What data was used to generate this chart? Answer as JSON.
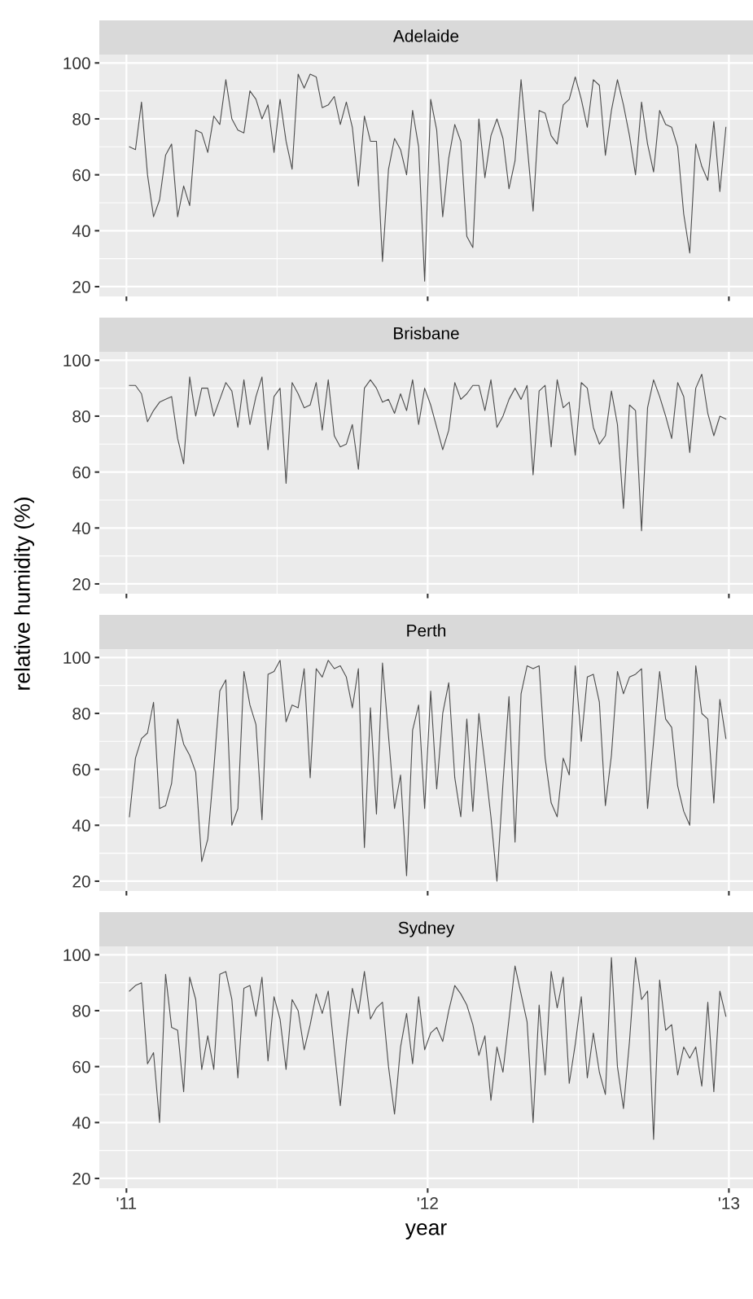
{
  "chart_data": [
    {
      "type": "line",
      "title": "Adelaide",
      "xlim": [
        2010.91,
        2013.08
      ],
      "ylim": [
        16.5,
        103
      ],
      "xticks": [
        2011,
        2012,
        2013
      ],
      "yticks": [
        20,
        40,
        60,
        80,
        100
      ],
      "grid": true,
      "tick_labels": "y",
      "x": [
        2011.01,
        2011.03,
        2011.05,
        2011.07,
        2011.09,
        2011.11,
        2011.13,
        2011.15,
        2011.17,
        2011.19,
        2011.21,
        2011.23,
        2011.25,
        2011.27,
        2011.29,
        2011.31,
        2011.33,
        2011.35,
        2011.37,
        2011.39,
        2011.41,
        2011.43,
        2011.45,
        2011.47,
        2011.49,
        2011.51,
        2011.53,
        2011.55,
        2011.57,
        2011.59,
        2011.61,
        2011.63,
        2011.65,
        2011.67,
        2011.69,
        2011.71,
        2011.73,
        2011.75,
        2011.77,
        2011.79,
        2011.81,
        2011.83,
        2011.85,
        2011.87,
        2011.89,
        2011.91,
        2011.93,
        2011.95,
        2011.97,
        2011.99,
        2012.01,
        2012.03,
        2012.05,
        2012.07,
        2012.09,
        2012.11,
        2012.13,
        2012.15,
        2012.17,
        2012.19,
        2012.21,
        2012.23,
        2012.25,
        2012.27,
        2012.29,
        2012.31,
        2012.33,
        2012.35,
        2012.37,
        2012.39,
        2012.41,
        2012.43,
        2012.45,
        2012.47,
        2012.49,
        2012.51,
        2012.53,
        2012.55,
        2012.57,
        2012.59,
        2012.61,
        2012.63,
        2012.65,
        2012.67,
        2012.69,
        2012.71,
        2012.73,
        2012.75,
        2012.77,
        2012.79,
        2012.81,
        2012.83,
        2012.85,
        2012.87,
        2012.89,
        2012.91,
        2012.93,
        2012.95,
        2012.97,
        2012.99
      ],
      "series": [
        {
          "color": "#4d4d4d",
          "values": [
            70,
            69,
            86,
            60,
            45,
            51,
            67,
            71,
            45,
            56,
            49,
            76,
            75,
            68,
            81,
            78,
            94,
            80,
            76,
            75,
            90,
            87,
            80,
            85,
            68,
            87,
            72,
            62,
            96,
            91,
            96,
            95,
            84,
            85,
            88,
            78,
            86,
            77,
            56,
            81,
            72,
            72,
            29,
            62,
            73,
            69,
            60,
            83,
            70,
            22,
            87,
            76,
            45,
            66,
            78,
            72,
            38,
            34,
            80,
            59,
            74,
            80,
            73,
            55,
            65,
            94,
            71,
            47,
            83,
            82,
            74,
            71,
            85,
            87,
            95,
            87,
            77,
            94,
            92,
            67,
            83,
            94,
            85,
            74,
            60,
            86,
            71,
            61,
            83,
            78,
            77,
            70,
            46,
            32,
            71,
            63,
            58,
            79,
            54,
            77
          ]
        }
      ]
    },
    {
      "type": "line",
      "title": "Brisbane",
      "ylabel": "relative humidity (%)",
      "xlim": [
        2010.91,
        2013.08
      ],
      "ylim": [
        16.5,
        103
      ],
      "xticks": [
        2011,
        2012,
        2013
      ],
      "yticks": [
        20,
        40,
        60,
        80,
        100
      ],
      "grid": true,
      "tick_labels": "y",
      "x": [
        2011.01,
        2011.03,
        2011.05,
        2011.07,
        2011.09,
        2011.11,
        2011.13,
        2011.15,
        2011.17,
        2011.19,
        2011.21,
        2011.23,
        2011.25,
        2011.27,
        2011.29,
        2011.31,
        2011.33,
        2011.35,
        2011.37,
        2011.39,
        2011.41,
        2011.43,
        2011.45,
        2011.47,
        2011.49,
        2011.51,
        2011.53,
        2011.55,
        2011.57,
        2011.59,
        2011.61,
        2011.63,
        2011.65,
        2011.67,
        2011.69,
        2011.71,
        2011.73,
        2011.75,
        2011.77,
        2011.79,
        2011.81,
        2011.83,
        2011.85,
        2011.87,
        2011.89,
        2011.91,
        2011.93,
        2011.95,
        2011.97,
        2011.99,
        2012.01,
        2012.03,
        2012.05,
        2012.07,
        2012.09,
        2012.11,
        2012.13,
        2012.15,
        2012.17,
        2012.19,
        2012.21,
        2012.23,
        2012.25,
        2012.27,
        2012.29,
        2012.31,
        2012.33,
        2012.35,
        2012.37,
        2012.39,
        2012.41,
        2012.43,
        2012.45,
        2012.47,
        2012.49,
        2012.51,
        2012.53,
        2012.55,
        2012.57,
        2012.59,
        2012.61,
        2012.63,
        2012.65,
        2012.67,
        2012.69,
        2012.71,
        2012.73,
        2012.75,
        2012.77,
        2012.79,
        2012.81,
        2012.83,
        2012.85,
        2012.87,
        2012.89,
        2012.91,
        2012.93,
        2012.95,
        2012.97,
        2012.99
      ],
      "series": [
        {
          "color": "#4d4d4d",
          "values": [
            91,
            91,
            88,
            78,
            82,
            85,
            86,
            87,
            72,
            63,
            94,
            80,
            90,
            90,
            80,
            86,
            92,
            89,
            76,
            93,
            77,
            87,
            94,
            68,
            87,
            90,
            56,
            92,
            88,
            83,
            84,
            92,
            75,
            93,
            73,
            69,
            70,
            77,
            61,
            90,
            93,
            90,
            85,
            86,
            81,
            88,
            82,
            93,
            77,
            90,
            84,
            76,
            68,
            75,
            92,
            86,
            88,
            91,
            91,
            82,
            93,
            76,
            80,
            86,
            90,
            86,
            91,
            59,
            89,
            91,
            69,
            93,
            83,
            85,
            66,
            92,
            90,
            76,
            70,
            73,
            89,
            77,
            47,
            84,
            82,
            39,
            83,
            93,
            87,
            80,
            72,
            92,
            87,
            67,
            90,
            95,
            81,
            73,
            80,
            79
          ]
        }
      ]
    },
    {
      "type": "line",
      "title": "Perth",
      "xlim": [
        2010.91,
        2013.08
      ],
      "ylim": [
        16.5,
        103
      ],
      "xticks": [
        2011,
        2012,
        2013
      ],
      "yticks": [
        20,
        40,
        60,
        80,
        100
      ],
      "grid": true,
      "tick_labels": "y",
      "x": [
        2011.01,
        2011.03,
        2011.05,
        2011.07,
        2011.09,
        2011.11,
        2011.13,
        2011.15,
        2011.17,
        2011.19,
        2011.21,
        2011.23,
        2011.25,
        2011.27,
        2011.29,
        2011.31,
        2011.33,
        2011.35,
        2011.37,
        2011.39,
        2011.41,
        2011.43,
        2011.45,
        2011.47,
        2011.49,
        2011.51,
        2011.53,
        2011.55,
        2011.57,
        2011.59,
        2011.61,
        2011.63,
        2011.65,
        2011.67,
        2011.69,
        2011.71,
        2011.73,
        2011.75,
        2011.77,
        2011.79,
        2011.81,
        2011.83,
        2011.85,
        2011.87,
        2011.89,
        2011.91,
        2011.93,
        2011.95,
        2011.97,
        2011.99,
        2012.01,
        2012.03,
        2012.05,
        2012.07,
        2012.09,
        2012.11,
        2012.13,
        2012.15,
        2012.17,
        2012.19,
        2012.21,
        2012.23,
        2012.25,
        2012.27,
        2012.29,
        2012.31,
        2012.33,
        2012.35,
        2012.37,
        2012.39,
        2012.41,
        2012.43,
        2012.45,
        2012.47,
        2012.49,
        2012.51,
        2012.53,
        2012.55,
        2012.57,
        2012.59,
        2012.61,
        2012.63,
        2012.65,
        2012.67,
        2012.69,
        2012.71,
        2012.73,
        2012.75,
        2012.77,
        2012.79,
        2012.81,
        2012.83,
        2012.85,
        2012.87,
        2012.89,
        2012.91,
        2012.93,
        2012.95,
        2012.97,
        2012.99
      ],
      "series": [
        {
          "color": "#4d4d4d",
          "values": [
            43,
            64,
            71,
            73,
            84,
            46,
            47,
            55,
            78,
            69,
            65,
            59,
            27,
            35,
            60,
            88,
            92,
            40,
            46,
            95,
            83,
            76,
            42,
            94,
            95,
            99,
            77,
            83,
            82,
            96,
            57,
            96,
            93,
            99,
            96,
            97,
            93,
            82,
            96,
            32,
            82,
            44,
            98,
            72,
            46,
            58,
            22,
            74,
            83,
            46,
            88,
            53,
            80,
            91,
            57,
            43,
            78,
            45,
            80,
            62,
            43,
            20,
            55,
            86,
            34,
            87,
            97,
            96,
            97,
            64,
            48,
            43,
            64,
            58,
            97,
            70,
            93,
            94,
            84,
            47,
            65,
            95,
            87,
            93,
            94,
            96,
            46,
            70,
            95,
            78,
            75,
            54,
            45,
            40,
            97,
            80,
            78,
            48,
            85,
            71
          ]
        }
      ]
    },
    {
      "type": "line",
      "title": "Sydney",
      "xlabel": "year",
      "xlim": [
        2010.91,
        2013.08
      ],
      "ylim": [
        16.5,
        103
      ],
      "xticks": [
        {
          "value": 2011,
          "label": "'11"
        },
        {
          "value": 2012,
          "label": "'12"
        },
        {
          "value": 2013,
          "label": "'13"
        }
      ],
      "yticks": [
        20,
        40,
        60,
        80,
        100
      ],
      "grid": true,
      "x": [
        2011.01,
        2011.03,
        2011.05,
        2011.07,
        2011.09,
        2011.11,
        2011.13,
        2011.15,
        2011.17,
        2011.19,
        2011.21,
        2011.23,
        2011.25,
        2011.27,
        2011.29,
        2011.31,
        2011.33,
        2011.35,
        2011.37,
        2011.39,
        2011.41,
        2011.43,
        2011.45,
        2011.47,
        2011.49,
        2011.51,
        2011.53,
        2011.55,
        2011.57,
        2011.59,
        2011.61,
        2011.63,
        2011.65,
        2011.67,
        2011.69,
        2011.71,
        2011.73,
        2011.75,
        2011.77,
        2011.79,
        2011.81,
        2011.83,
        2011.85,
        2011.87,
        2011.89,
        2011.91,
        2011.93,
        2011.95,
        2011.97,
        2011.99,
        2012.01,
        2012.03,
        2012.05,
        2012.07,
        2012.09,
        2012.11,
        2012.13,
        2012.15,
        2012.17,
        2012.19,
        2012.21,
        2012.23,
        2012.25,
        2012.27,
        2012.29,
        2012.31,
        2012.33,
        2012.35,
        2012.37,
        2012.39,
        2012.41,
        2012.43,
        2012.45,
        2012.47,
        2012.49,
        2012.51,
        2012.53,
        2012.55,
        2012.57,
        2012.59,
        2012.61,
        2012.63,
        2012.65,
        2012.67,
        2012.69,
        2012.71,
        2012.73,
        2012.75,
        2012.77,
        2012.79,
        2012.81,
        2012.83,
        2012.85,
        2012.87,
        2012.89,
        2012.91,
        2012.93,
        2012.95,
        2012.97,
        2012.99
      ],
      "series": [
        {
          "color": "#4d4d4d",
          "values": [
            87,
            89,
            90,
            61,
            65,
            40,
            93,
            74,
            73,
            51,
            92,
            84,
            59,
            71,
            59,
            93,
            94,
            84,
            56,
            88,
            89,
            78,
            92,
            62,
            85,
            77,
            59,
            84,
            80,
            66,
            75,
            86,
            79,
            87,
            66,
            46,
            69,
            88,
            79,
            94,
            77,
            81,
            83,
            60,
            43,
            67,
            79,
            61,
            85,
            66,
            72,
            74,
            69,
            80,
            89,
            86,
            82,
            75,
            64,
            71,
            48,
            67,
            58,
            77,
            96,
            86,
            76,
            40,
            82,
            57,
            94,
            81,
            92,
            54,
            68,
            85,
            56,
            72,
            58,
            50,
            99,
            60,
            45,
            69,
            99,
            84,
            87,
            34,
            91,
            73,
            75,
            57,
            67,
            63,
            67,
            53,
            83,
            51,
            87,
            78
          ]
        }
      ]
    }
  ]
}
